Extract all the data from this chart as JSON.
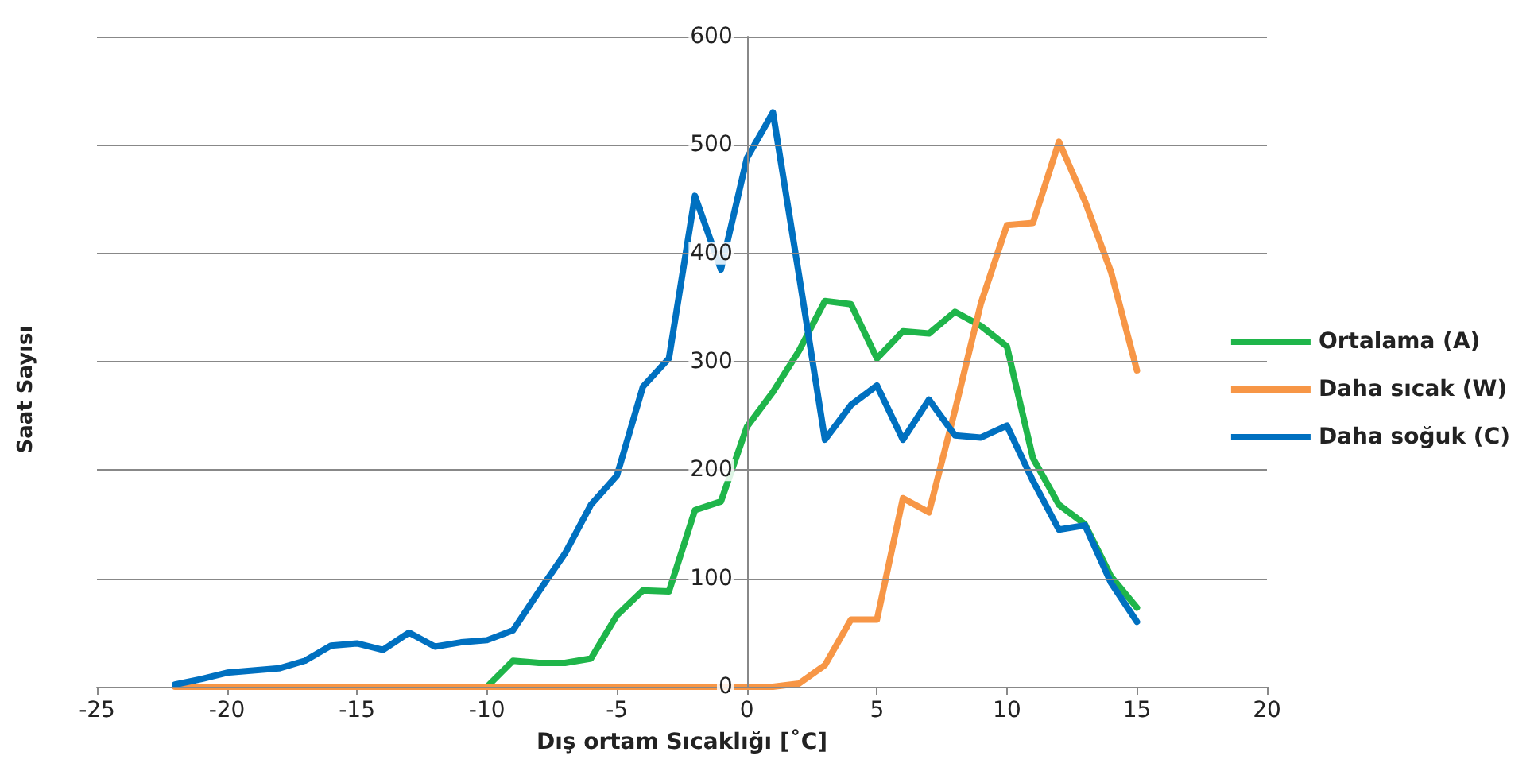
{
  "chart_data": {
    "type": "line",
    "xlabel": "Dış ortam Sıcaklığı [˚C]",
    "ylabel": "Saat Sayısı",
    "xlim": [
      -25,
      20
    ],
    "xticks": [
      -25,
      -20,
      -15,
      -10,
      -5,
      0,
      5,
      10,
      15,
      20
    ],
    "ylim": [
      0,
      600
    ],
    "yticks": [
      0,
      100,
      200,
      300,
      400,
      500,
      600
    ],
    "grid": "y",
    "legend": "right",
    "marker": "none",
    "line_style": "solid",
    "series": [
      {
        "name": "Ortalama (A)",
        "color": "#1fb54a",
        "x": [
          -10,
          -9,
          -8,
          -7,
          -6,
          -5,
          -4,
          -3,
          -2,
          -1,
          0,
          1,
          2,
          3,
          4,
          5,
          6,
          7,
          8,
          9,
          10,
          11,
          12,
          13,
          14,
          15
        ],
        "values": [
          0,
          24,
          22,
          22,
          26,
          66,
          89,
          88,
          163,
          171,
          240,
          272,
          310,
          356,
          353,
          303,
          328,
          326,
          346,
          333,
          314,
          211,
          168,
          150,
          102,
          73
        ]
      },
      {
        "name": "Daha sıcak (W)",
        "color": "#f79646",
        "x": [
          -22,
          -21,
          -20,
          -19,
          -18,
          -17,
          -16,
          -15,
          -14,
          -13,
          -12,
          -11,
          -10,
          -9,
          -8,
          -7,
          -6,
          -5,
          -4,
          -3,
          -2,
          -1,
          0,
          1,
          2,
          3,
          4,
          5,
          6,
          7,
          8,
          9,
          10,
          11,
          12,
          13,
          14,
          15
        ],
        "values": [
          0,
          0,
          0,
          0,
          0,
          0,
          0,
          0,
          0,
          0,
          0,
          0,
          0,
          0,
          0,
          0,
          0,
          0,
          0,
          0,
          0,
          0,
          0,
          0,
          3,
          20,
          62,
          62,
          174,
          161,
          255,
          354,
          426,
          428,
          503,
          448,
          383,
          292
        ]
      },
      {
        "name": "Daha soğuk (C)",
        "color": "#0070c0",
        "x": [
          -22,
          -21,
          -20,
          -19,
          -18,
          -17,
          -16,
          -15,
          -14,
          -13,
          -12,
          -11,
          -10,
          -9,
          -8,
          -7,
          -6,
          -5,
          -4,
          -3,
          -2,
          -1,
          0,
          1,
          2,
          3,
          4,
          5,
          6,
          7,
          8,
          9,
          10,
          11,
          12,
          13,
          14,
          15
        ],
        "values": [
          2,
          7,
          13,
          15,
          17,
          24,
          38,
          40,
          34,
          50,
          37,
          41,
          43,
          52,
          88,
          123,
          168,
          195,
          277,
          303,
          453,
          385,
          488,
          530,
          380,
          228,
          260,
          278,
          228,
          265,
          232,
          230,
          241,
          190,
          145,
          149,
          96,
          60
        ]
      }
    ]
  }
}
